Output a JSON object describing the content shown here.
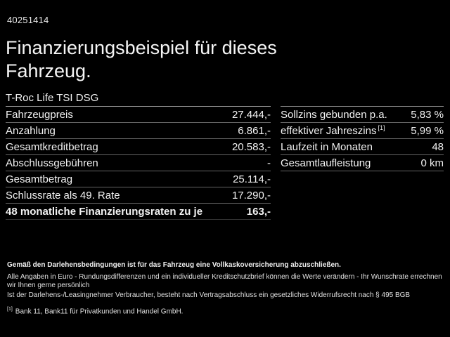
{
  "page": {
    "record_id": "40251414",
    "title_line1": "Finanzierungsbeispiel für dieses",
    "title_line2": "Fahrzeug.",
    "model_name": "T-Roc Life TSI DSG"
  },
  "finance_table": {
    "rows": [
      {
        "label": "Fahrzeugpreis",
        "value": "27.444,-"
      },
      {
        "label": "Anzahlung",
        "value": "6.861,-"
      },
      {
        "label": "Gesamtkreditbetrag",
        "value": "20.583,-"
      },
      {
        "label": "Abschlussgebühren",
        "value": "-"
      },
      {
        "label": "Gesamtbetrag",
        "value": "25.114,-"
      },
      {
        "label": "Schlussrate als 49. Rate",
        "value": "17.290,-"
      }
    ],
    "highlight_row": {
      "label": "48 monatliche Finanzierungsraten zu je",
      "value": "163,-"
    }
  },
  "conditions_table": {
    "rows": [
      {
        "label": "Sollzins gebunden p.a.",
        "sup": "",
        "value": "5,83 %"
      },
      {
        "label": "effektiver Jahreszins",
        "sup": "[1]",
        "value": "5,99 %"
      },
      {
        "label": "Laufzeit in Monaten",
        "sup": "",
        "value": "48"
      },
      {
        "label": "Gesamtlaufleistung",
        "sup": "",
        "value": "0 km"
      }
    ]
  },
  "footer": {
    "bold_note": "Gemäß den Darlehensbedingungen ist für das Fahrzeug eine Vollkaskoversicherung abzuschließen.",
    "note_line1": "Alle Angaben in Euro - Rundungsdifferenzen und ein individueller Kreditschutzbrief können die Werte verändern - Ihr Wunschrate errechnen wir Ihnen gerne persönlich",
    "note_line2": "Ist der Darlehens-/Leasingnehmer Verbraucher, besteht nach Vertragsabschluss ein gesetzliches Widerrufsrecht nach § 495 BGB",
    "footnote_marker": "[1]",
    "footnote_text": "Bank 11, Bank11 für Privatkunden und Handel GmbH."
  },
  "colors": {
    "background": "#000000",
    "text": "#f2f2f2",
    "divider": "#646464",
    "header_divider": "#9a9a9a"
  }
}
